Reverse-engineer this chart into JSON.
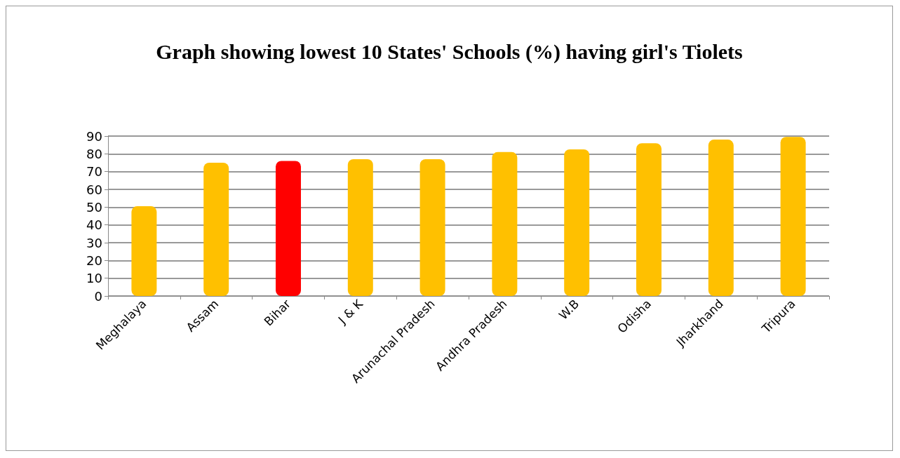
{
  "chart_data": {
    "type": "bar",
    "title": "Graph showing lowest 10 States' Schools (%) having girl's Tiolets",
    "categories": [
      "Meghalaya",
      "Assam",
      "Bihar",
      "J & K",
      "Arunachal Pradesh",
      "Andhra Pradesh",
      "W.B",
      "Odisha",
      "Jharkhand",
      "Tripura"
    ],
    "values": [
      50.5,
      75,
      76,
      77,
      77,
      81,
      82.5,
      86,
      88,
      89.5
    ],
    "colors": [
      "#ffc000",
      "#ffc000",
      "#ff0000",
      "#ffc000",
      "#ffc000",
      "#ffc000",
      "#ffc000",
      "#ffc000",
      "#ffc000",
      "#ffc000"
    ],
    "ylim": [
      0,
      90
    ],
    "yticks": [
      0,
      10,
      20,
      30,
      40,
      50,
      60,
      70,
      80,
      90
    ],
    "grid": true
  }
}
